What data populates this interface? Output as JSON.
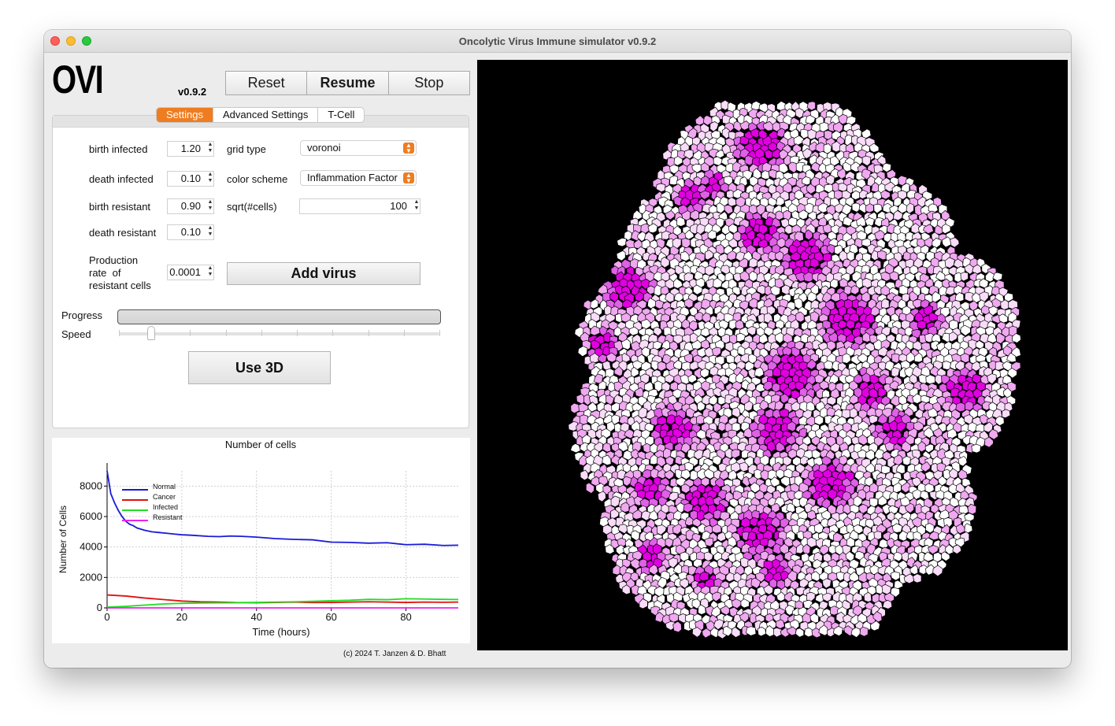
{
  "window": {
    "title": "Oncolytic Virus Immune simulator v0.9.2"
  },
  "header": {
    "logo": "OVI",
    "version": "v0.9.2",
    "buttons": {
      "reset": "Reset",
      "resume": "Resume",
      "stop": "Stop"
    }
  },
  "tabs": [
    {
      "label": "Settings",
      "active": true
    },
    {
      "label": "Advanced Settings",
      "active": false
    },
    {
      "label": "T-Cell",
      "active": false
    }
  ],
  "settings": {
    "birth_infected": {
      "label": "birth infected",
      "value": "1.20"
    },
    "death_infected": {
      "label": "death infected",
      "value": "0.10"
    },
    "birth_resistant": {
      "label": "birth resistant",
      "value": "0.90"
    },
    "death_resistant": {
      "label": "death resistant",
      "value": "0.10"
    },
    "production_rate": {
      "label_line1": "Production",
      "label_line2": "rate  of",
      "label_line3": "resistant cells",
      "value": "0.0001"
    },
    "grid_type": {
      "label": "grid type",
      "value": "voronoi"
    },
    "color_scheme": {
      "label": "color scheme",
      "value": "Inflammation Factor"
    },
    "sqrt_cells": {
      "label": "sqrt(#cells)",
      "value": "100"
    },
    "add_virus_label": "Add virus",
    "progress_label": "Progress",
    "progress_value": 0,
    "speed_label": "Speed",
    "speed_value": 0.1,
    "use3d_label": "Use 3D"
  },
  "chart_data": {
    "type": "line",
    "title": "Number of cells",
    "xlabel": "Time (hours)",
    "ylabel": "Number of Cells",
    "xlim": [
      0,
      94
    ],
    "ylim": [
      0,
      9000
    ],
    "xticks": [
      0,
      20,
      40,
      60,
      80
    ],
    "yticks": [
      0,
      2000,
      4000,
      6000,
      8000
    ],
    "grid": true,
    "legend_position": "top-left",
    "series": [
      {
        "name": "Normal",
        "color": "#1a1ad8",
        "x": [
          0,
          1,
          2,
          3,
          4,
          5,
          6,
          7,
          8,
          10,
          12,
          14,
          16,
          18,
          20,
          22,
          24,
          27,
          30,
          33,
          36,
          40,
          45,
          50,
          55,
          60,
          65,
          70,
          75,
          80,
          85,
          90,
          94
        ],
        "y": [
          9000,
          7500,
          6900,
          6400,
          6000,
          5700,
          5500,
          5400,
          5250,
          5100,
          5000,
          4950,
          4900,
          4850,
          4800,
          4780,
          4750,
          4700,
          4680,
          4720,
          4700,
          4650,
          4550,
          4500,
          4470,
          4320,
          4300,
          4250,
          4280,
          4150,
          4180,
          4100,
          4120
        ]
      },
      {
        "name": "Cancer",
        "color": "#e01010",
        "x": [
          0,
          5,
          10,
          15,
          20,
          25,
          30,
          35,
          40,
          45,
          50,
          55,
          60,
          65,
          70,
          75,
          80,
          85,
          90,
          94
        ],
        "y": [
          850,
          780,
          650,
          550,
          450,
          400,
          380,
          350,
          340,
          360,
          380,
          350,
          360,
          380,
          400,
          380,
          360,
          380,
          370,
          380
        ]
      },
      {
        "name": "Infected",
        "color": "#22dd22",
        "x": [
          0,
          5,
          10,
          15,
          20,
          25,
          30,
          35,
          40,
          45,
          50,
          55,
          60,
          65,
          70,
          75,
          80,
          85,
          90,
          94
        ],
        "y": [
          50,
          100,
          180,
          260,
          300,
          320,
          330,
          340,
          360,
          380,
          400,
          430,
          470,
          500,
          560,
          540,
          600,
          580,
          560,
          550
        ]
      },
      {
        "name": "Resistant",
        "color": "#ee22ee",
        "x": [
          0,
          20,
          40,
          60,
          80,
          94
        ],
        "y": [
          0,
          0,
          0,
          0,
          0,
          0
        ]
      }
    ]
  },
  "footer": {
    "copyright": "(c) 2024 T. Janzen & D. Bhatt"
  },
  "simulation": {
    "background": "#000000",
    "cell_colors": [
      "#ffffff",
      "#f8dcf8",
      "#f0a8f0",
      "#e060e8",
      "#e000e0"
    ]
  }
}
